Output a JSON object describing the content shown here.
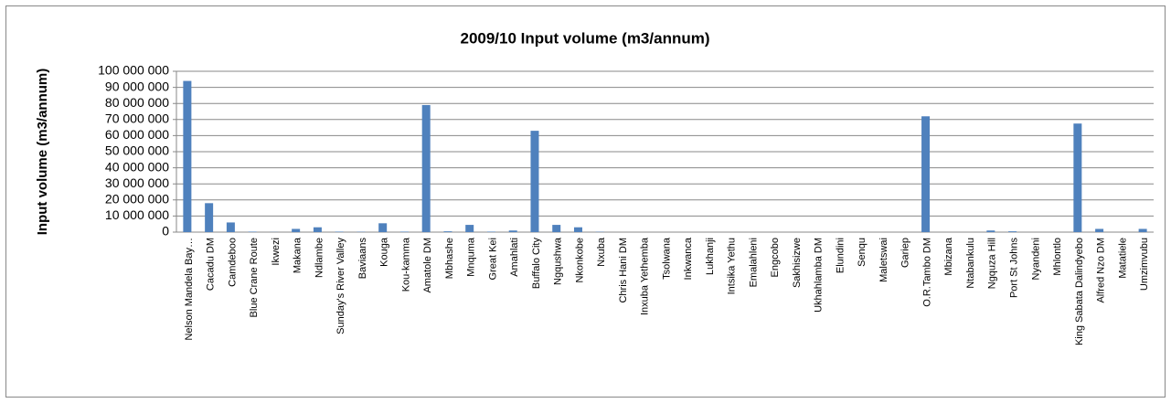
{
  "chart_data": {
    "type": "bar",
    "title": "2009/10 Input volume (m3/annum)",
    "y_label": "Input volume (m3/annum)",
    "categories": [
      "Nelson Mandela Bay…",
      "Cacadu DM",
      "Camdeboo",
      "Blue Crane Route",
      "Ikwezi",
      "Makana",
      "Ndlambe",
      "Sunday's River Valley",
      "Baviaans",
      "Kouga",
      "Kou-kamma",
      "Amatole DM",
      "Mbhashe",
      "Mnquma",
      "Great Kei",
      "Amahlati",
      "Buffalo City",
      "Ngqushwa",
      "Nkonkobe",
      "Nxuba",
      "Chris Hani DM",
      "Inxuba Yethemba",
      "Tsolwana",
      "Inkwanca",
      "Lukhanji",
      "Intsika Yethu",
      "Emalahleni",
      "Engcobo",
      "Sakhisizwe",
      "Ukhahlamba DM",
      "Elundini",
      "Senqu",
      "Maletswai",
      "Gariep",
      "O.R.Tambo DM",
      "Mbizana",
      "Ntabankulu",
      "Ngquza Hill",
      "Port St Johns",
      "Nyandeni",
      "Mhlontlo",
      "King Sabata Dalindyebo",
      "Alfred Nzo DM",
      "Matatiele",
      "Umzimvubu"
    ],
    "values": [
      94000000,
      18000000,
      6000000,
      300000,
      100000,
      2000000,
      3000000,
      300000,
      200000,
      5500000,
      300000,
      79000000,
      500000,
      4500000,
      300000,
      1000000,
      63000000,
      4500000,
      3000000,
      200000,
      0,
      0,
      0,
      0,
      0,
      0,
      0,
      0,
      0,
      0,
      0,
      0,
      0,
      0,
      72000000,
      0,
      0,
      1000000,
      500000,
      0,
      0,
      67500000,
      2000000,
      0,
      2000000
    ],
    "color": "#4f81bd",
    "ylim": [
      0,
      100000000
    ],
    "yticks": [
      {
        "value": 0,
        "label": "0"
      },
      {
        "value": 10000000,
        "label": "10 000 000"
      },
      {
        "value": 20000000,
        "label": "20 000 000"
      },
      {
        "value": 30000000,
        "label": "30 000 000"
      },
      {
        "value": 40000000,
        "label": "40 000 000"
      },
      {
        "value": 50000000,
        "label": "50 000 000"
      },
      {
        "value": 60000000,
        "label": "60 000 000"
      },
      {
        "value": 70000000,
        "label": "70 000 000"
      },
      {
        "value": 80000000,
        "label": "80 000 000"
      },
      {
        "value": 90000000,
        "label": "90 000 000"
      },
      {
        "value": 100000000,
        "label": "100 000 000"
      }
    ],
    "grid": true
  }
}
